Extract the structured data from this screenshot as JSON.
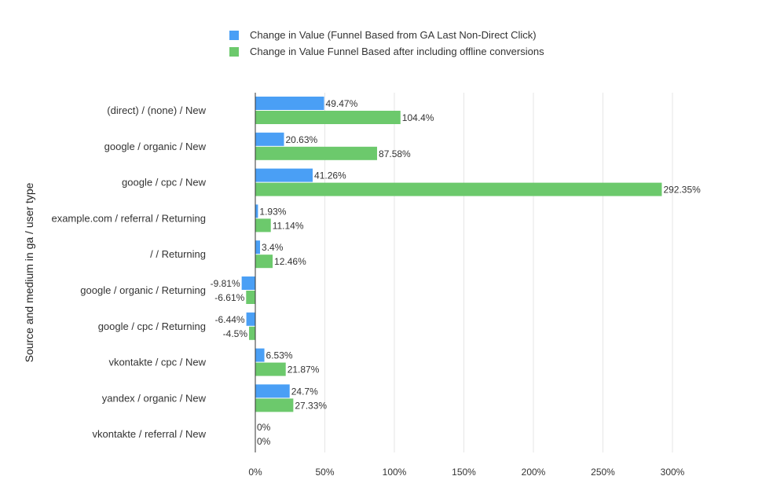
{
  "chart_data": {
    "type": "bar",
    "orientation": "horizontal",
    "ylabel": "Source and medium in ga / user type",
    "categories": [
      "(direct) / (none) / New",
      "google / organic / New",
      "google / cpc / New",
      "example.com / referral / Returning",
      "/  / Returning",
      "google / organic / Returning",
      "google / cpc / Returning",
      "vkontakte / cpc / New",
      "yandex / organic / New",
      "vkontakte / referral / New"
    ],
    "series": [
      {
        "name": "Change in Value (Funnel Based from GA Last Non-Direct Click)",
        "color": "#4a9ff5",
        "values": [
          49.47,
          20.63,
          41.26,
          1.93,
          3.4,
          -9.81,
          -6.44,
          6.53,
          24.7,
          0
        ],
        "labels": [
          "49.47%",
          "20.63%",
          "41.26%",
          "1.93%",
          "3.4%",
          "-9.81%",
          "-6.44%",
          "6.53%",
          "24.7%",
          "0%"
        ]
      },
      {
        "name": "Change in Value Funnel Based after including offline conversions",
        "color": "#6cc96c",
        "values": [
          104.4,
          87.58,
          292.35,
          11.14,
          12.46,
          -6.61,
          -4.5,
          21.87,
          27.33,
          0
        ],
        "labels": [
          "104.4%",
          "87.58%",
          "292.35%",
          "11.14%",
          "12.46%",
          "-6.61%",
          "-4.5%",
          "21.87%",
          "27.33%",
          "0%"
        ]
      }
    ],
    "xlim": [
      0,
      300
    ],
    "xticks": [
      0,
      50,
      100,
      150,
      200,
      250,
      300
    ],
    "xtick_labels": [
      "0%",
      "50%",
      "100%",
      "150%",
      "200%",
      "250%",
      "300%"
    ],
    "grid": true,
    "legend_position": "top"
  }
}
